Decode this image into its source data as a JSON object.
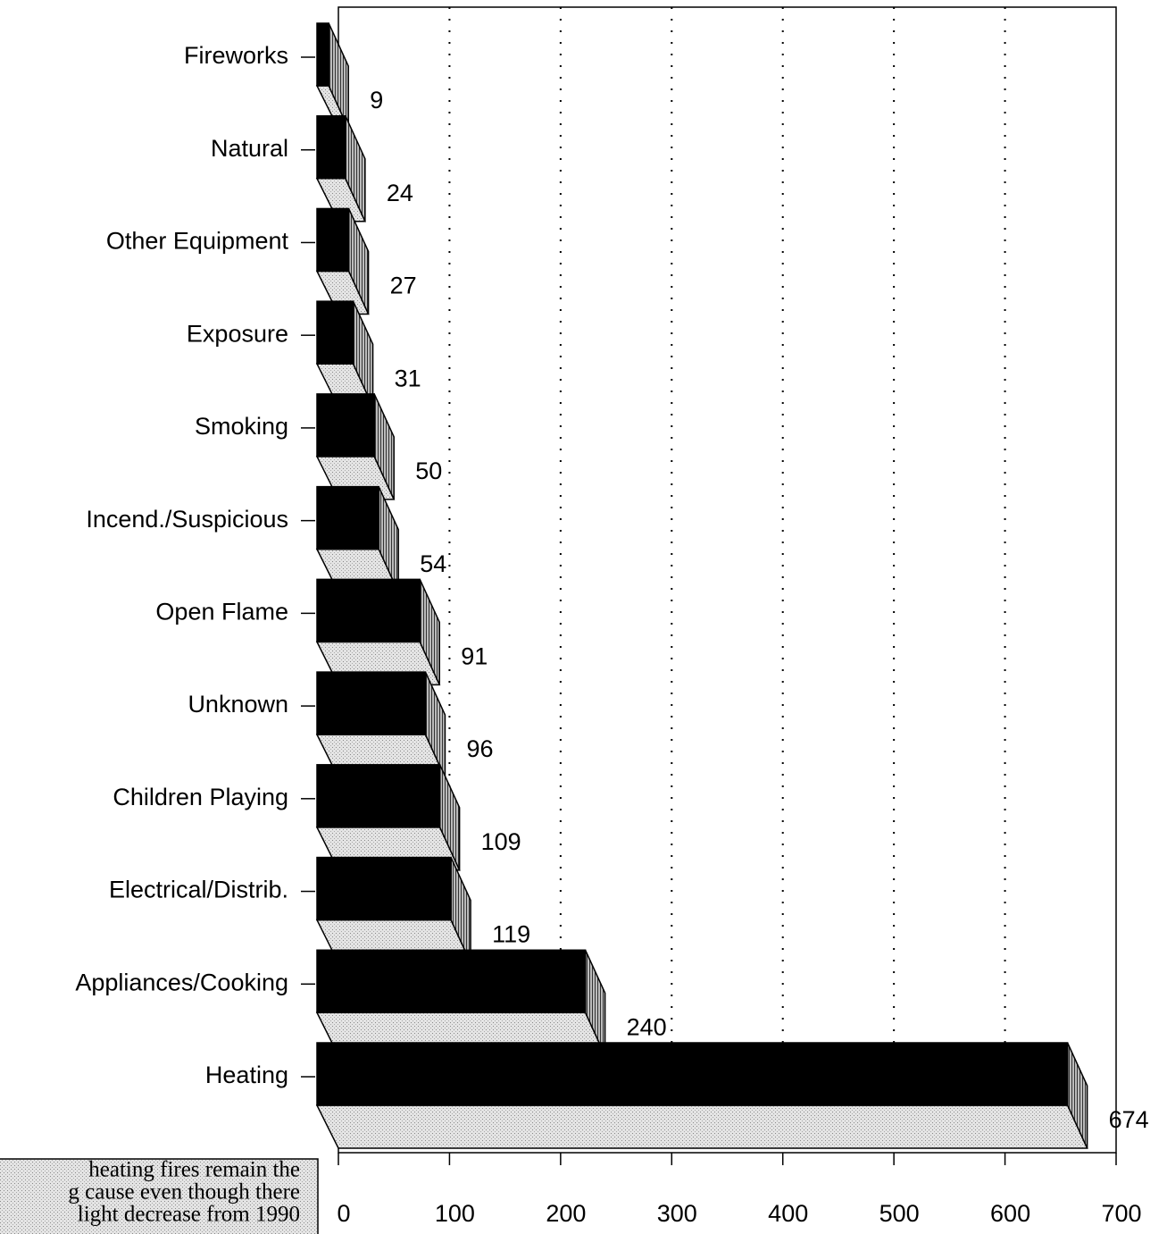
{
  "chart_data": {
    "type": "bar3d",
    "categories": [
      "Fireworks",
      "Natural",
      "Other Equipment",
      "Exposure",
      "Smoking",
      "Incend./Suspicious",
      "Open Flame",
      "Unknown",
      "Children Playing",
      "Electrical/Distrib.",
      "Appliances/Cooking",
      "Heating"
    ],
    "values": [
      9,
      24,
      27,
      31,
      50,
      54,
      91,
      96,
      109,
      119,
      240,
      674
    ],
    "color": "#000000",
    "xlim": [
      0,
      700
    ],
    "xticks": [
      0,
      100,
      200,
      300,
      400,
      500,
      600,
      700
    ],
    "grid": true,
    "annotation": [
      "heating fires remain the",
      "g cause even though there",
      "light decrease from 1990"
    ]
  }
}
